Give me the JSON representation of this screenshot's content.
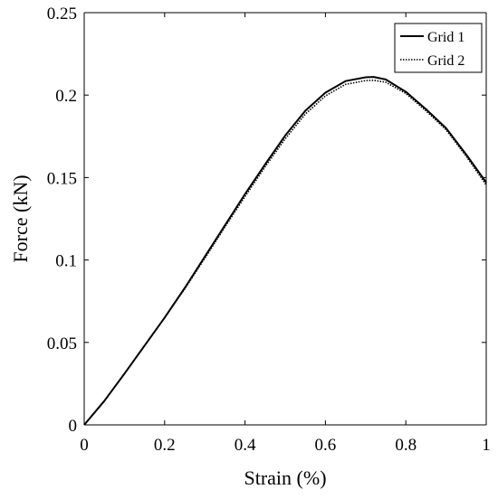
{
  "chart_data": {
    "type": "line",
    "title": "",
    "xlabel": "Strain (%)",
    "ylabel": "Force (kN)",
    "xlim": [
      0,
      1
    ],
    "ylim": [
      0,
      0.25
    ],
    "xticks": [
      0,
      0.2,
      0.4,
      0.6,
      0.8,
      1
    ],
    "xtick_labels": [
      "0",
      "0.2",
      "0.4",
      "0.6",
      "0.8",
      "1"
    ],
    "yticks": [
      0,
      0.05,
      0.1,
      0.15,
      0.2,
      0.25
    ],
    "ytick_labels": [
      "0",
      "0.05",
      "0.1",
      "0.15",
      "0.2",
      "0.25"
    ],
    "grid": false,
    "legend": "top-right",
    "series": [
      {
        "name": "Grid 1",
        "style": "solid",
        "color": "#000000",
        "x": [
          0,
          0.05,
          0.1,
          0.15,
          0.2,
          0.25,
          0.3,
          0.35,
          0.4,
          0.45,
          0.5,
          0.55,
          0.6,
          0.65,
          0.7,
          0.72,
          0.75,
          0.8,
          0.85,
          0.9,
          0.95,
          1.0
        ],
        "y": [
          0,
          0.0145,
          0.031,
          0.048,
          0.065,
          0.083,
          0.102,
          0.121,
          0.14,
          0.158,
          0.1755,
          0.1905,
          0.2015,
          0.2085,
          0.2108,
          0.211,
          0.2095,
          0.202,
          0.1915,
          0.18,
          0.164,
          0.147
        ]
      },
      {
        "name": "Grid 2",
        "style": "dotted",
        "color": "#000000",
        "x": [
          0,
          0.05,
          0.1,
          0.15,
          0.2,
          0.25,
          0.3,
          0.35,
          0.4,
          0.45,
          0.5,
          0.55,
          0.6,
          0.65,
          0.7,
          0.72,
          0.75,
          0.8,
          0.85,
          0.9,
          0.95,
          1.0
        ],
        "y": [
          0,
          0.0145,
          0.031,
          0.048,
          0.065,
          0.0825,
          0.101,
          0.12,
          0.1385,
          0.1565,
          0.1735,
          0.1885,
          0.1995,
          0.2065,
          0.2088,
          0.209,
          0.2078,
          0.201,
          0.1905,
          0.179,
          0.163,
          0.1455
        ]
      }
    ]
  }
}
